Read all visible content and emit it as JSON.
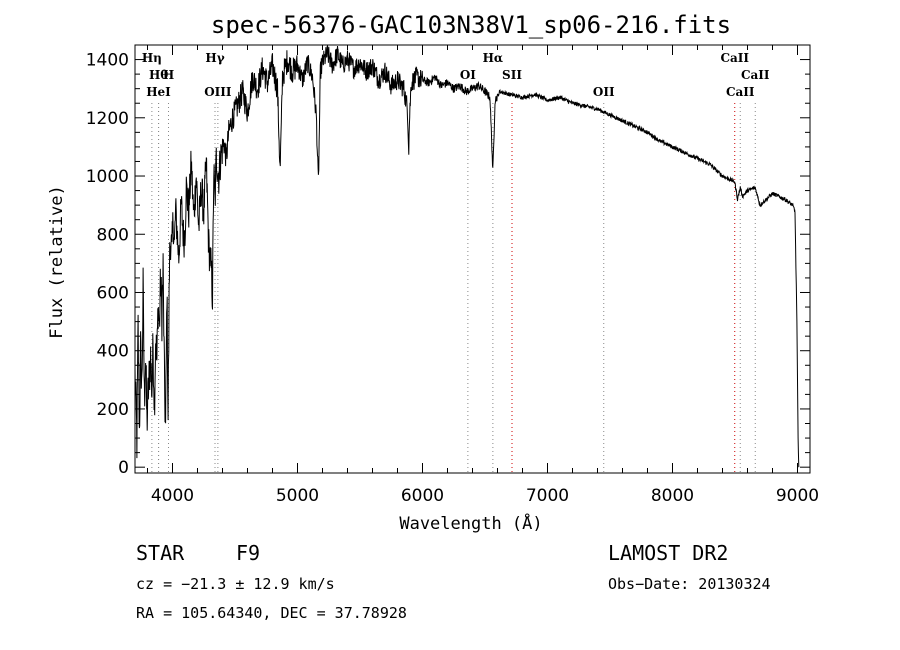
{
  "chart_data": {
    "type": "line",
    "title": "spec-56376-GAC103N38V1_sp06-216.fits",
    "xlabel": "Wavelength (Å)",
    "ylabel": "Flux (relative)",
    "xlim": [
      3700,
      9100
    ],
    "ylim": [
      -20,
      1450
    ],
    "xticks": [
      4000,
      5000,
      6000,
      7000,
      8000,
      9000
    ],
    "yticks": [
      0,
      200,
      400,
      600,
      800,
      1000,
      1200,
      1400
    ],
    "grid": false,
    "series": [
      {
        "values_x": [
          3700,
          3715,
          3725,
          3735,
          3745,
          3755,
          3765,
          3775,
          3785,
          3795,
          3805,
          3815,
          3825,
          3835,
          3845,
          3855,
          3865,
          3875,
          3885,
          3895,
          3905,
          3915,
          3925,
          3935,
          3945,
          3955,
          3965,
          3975,
          3985,
          3995,
          4005,
          4015,
          4025,
          4035,
          4050,
          4070,
          4090,
          4101,
          4110,
          4130,
          4150,
          4170,
          4190,
          4210,
          4230,
          4250,
          4270,
          4290,
          4310,
          4320,
          4330,
          4340,
          4350,
          4370,
          4390,
          4410,
          4430,
          4450,
          4480,
          4520,
          4560,
          4600,
          4640,
          4680,
          4720,
          4760,
          4800,
          4840,
          4861,
          4880,
          4920,
          4960,
          5000,
          5040,
          5080,
          5120,
          5150,
          5167,
          5183,
          5200,
          5240,
          5280,
          5320,
          5360,
          5400,
          5450,
          5500,
          5550,
          5600,
          5650,
          5700,
          5750,
          5800,
          5850,
          5880,
          5890,
          5896,
          5910,
          5950,
          6000,
          6050,
          6100,
          6150,
          6200,
          6250,
          6300,
          6350,
          6400,
          6450,
          6500,
          6540,
          6563,
          6580,
          6620,
          6700,
          6800,
          6900,
          7000,
          7100,
          7200,
          7300,
          7400,
          7500,
          7600,
          7700,
          7800,
          7900,
          8000,
          8100,
          8200,
          8300,
          8400,
          8498,
          8520,
          8542,
          8560,
          8600,
          8662,
          8700,
          8800,
          8900,
          8960,
          8980,
          8995,
          9005,
          9010
        ],
        "values_y": [
          320,
          90,
          480,
          120,
          400,
          280,
          610,
          230,
          380,
          150,
          250,
          320,
          380,
          260,
          420,
          210,
          440,
          360,
          560,
          480,
          640,
          520,
          680,
          300,
          120,
          620,
          170,
          690,
          800,
          720,
          860,
          760,
          880,
          820,
          720,
          900,
          780,
          820,
          960,
          880,
          1040,
          860,
          1000,
          820,
          960,
          880,
          1040,
          760,
          680,
          580,
          1020,
          900,
          1060,
          1000,
          1080,
          1120,
          1060,
          1150,
          1200,
          1240,
          1290,
          1220,
          1340,
          1300,
          1370,
          1320,
          1380,
          1300,
          1010,
          1340,
          1400,
          1360,
          1380,
          1330,
          1390,
          1340,
          1210,
          970,
          1360,
          1390,
          1420,
          1380,
          1420,
          1380,
          1400,
          1370,
          1390,
          1360,
          1380,
          1330,
          1360,
          1310,
          1330,
          1300,
          1230,
          1100,
          1200,
          1320,
          1340,
          1330,
          1320,
          1340,
          1310,
          1320,
          1300,
          1310,
          1290,
          1300,
          1310,
          1290,
          1270,
          1010,
          1260,
          1290,
          1280,
          1270,
          1280,
          1260,
          1270,
          1250,
          1240,
          1230,
          1210,
          1190,
          1170,
          1150,
          1120,
          1100,
          1080,
          1060,
          1040,
          1000,
          980,
          920,
          960,
          930,
          950,
          960,
          900,
          940,
          920,
          900,
          880,
          500,
          100,
          0
        ]
      }
    ],
    "annotations": {
      "lines": [
        {
          "x": 3835,
          "label": "Hη",
          "row": 0,
          "color": "#000000"
        },
        {
          "x": 3889,
          "label": "Hθ",
          "row": 1,
          "color": "#000000"
        },
        {
          "x": 3968,
          "label": "H",
          "row": 1,
          "color": "#000000"
        },
        {
          "x": 3888,
          "label": "HeI",
          "row": 2,
          "color": "#000000"
        },
        {
          "x": 4340,
          "label": "Hγ",
          "row": 0,
          "color": "#000000"
        },
        {
          "x": 4363,
          "label": "OIII",
          "row": 2,
          "color": "#000000"
        },
        {
          "x": 6363,
          "label": "OI",
          "row": 1,
          "color": "#000000"
        },
        {
          "x": 6563,
          "label": "Hα",
          "row": 0,
          "color": "#000000"
        },
        {
          "x": 6716,
          "label": "SII",
          "row": 1,
          "color": "#cc0000"
        },
        {
          "x": 7450,
          "label": "OII",
          "row": 2,
          "color": "#000000"
        },
        {
          "x": 8498,
          "label": "CaII",
          "row": 0,
          "color": "#cc0000"
        },
        {
          "x": 8662,
          "label": "CaII",
          "row": 1,
          "color": "#000000"
        },
        {
          "x": 8542,
          "label": "CaII",
          "row": 2,
          "color": "#000000"
        }
      ]
    }
  },
  "info": {
    "class": "STAR",
    "subclass": "F9",
    "survey": "LAMOST DR2",
    "cz": "cz = −21.3 ± 12.9 km/s",
    "obs_date": "Obs−Date: 20130324",
    "coords": "RA = 105.64340, DEC =  37.78928"
  },
  "colors": {
    "line": "#000000",
    "marker_red": "#cc0000",
    "marker_gray": "#888888"
  }
}
